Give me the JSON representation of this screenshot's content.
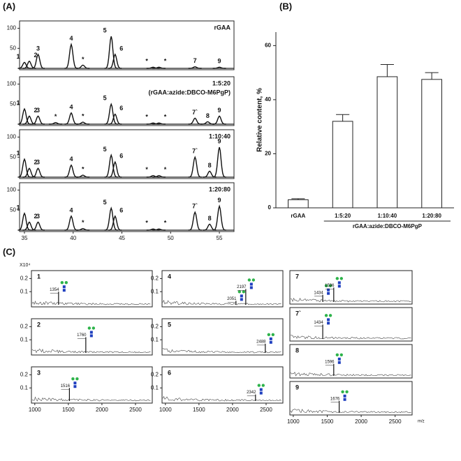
{
  "chart_data": [
    {
      "type": "chromatogram",
      "panel": "(A)",
      "xlim": [
        34.5,
        56.5
      ],
      "xticks": [
        35,
        40,
        45,
        50,
        55
      ],
      "ylim": [
        0,
        115
      ],
      "yticks": [
        50,
        100
      ],
      "traces": [
        {
          "labels": [
            "rGAA"
          ],
          "peaks": [
            {
              "x": 35,
              "height": 15,
              "label": "1"
            },
            {
              "x": 35.5,
              "height": 18,
              "label": "2"
            },
            {
              "x": 36.4,
              "height": 35,
              "label": "3"
            },
            {
              "x": 39.8,
              "height": 60,
              "label": "4"
            },
            {
              "x": 41,
              "height": 8,
              "label": "*"
            },
            {
              "x": 43.9,
              "height": 80,
              "label": "5"
            },
            {
              "x": 44.3,
              "height": 35,
              "label": "6"
            },
            {
              "x": 48.2,
              "height": 3,
              "label": "*"
            },
            {
              "x": 48.8,
              "height": 3,
              "label": "*"
            },
            {
              "x": 52.5,
              "height": 4,
              "label": "7"
            },
            {
              "x": 55,
              "height": 3,
              "label": "9"
            }
          ]
        },
        {
          "labels": [
            "1:5:20",
            "(rGAA:azide:DBCO-M6PgP)"
          ],
          "peaks": [
            {
              "x": 35,
              "height": 38,
              "label": "1"
            },
            {
              "x": 35.5,
              "height": 20,
              "label": "2"
            },
            {
              "x": 36.4,
              "height": 20,
              "label": "3"
            },
            {
              "x": 38.2,
              "height": 4,
              "label": "*"
            },
            {
              "x": 39.8,
              "height": 28,
              "label": "4"
            },
            {
              "x": 41,
              "height": 5,
              "label": "*"
            },
            {
              "x": 43.9,
              "height": 50,
              "label": "5"
            },
            {
              "x": 44.3,
              "height": 25,
              "label": "6"
            },
            {
              "x": 48.2,
              "height": 3,
              "label": "*"
            },
            {
              "x": 48.8,
              "height": 3,
              "label": "*"
            },
            {
              "x": 52.5,
              "height": 15,
              "label": "7`"
            },
            {
              "x": 53.8,
              "height": 6,
              "label": "8"
            },
            {
              "x": 55,
              "height": 20,
              "label": "9"
            }
          ]
        },
        {
          "labels": [
            "1:10:40"
          ],
          "peaks": [
            {
              "x": 35,
              "height": 45,
              "label": "1"
            },
            {
              "x": 35.5,
              "height": 22,
              "label": "2"
            },
            {
              "x": 36.4,
              "height": 22,
              "label": "3"
            },
            {
              "x": 39.8,
              "height": 30,
              "label": "4"
            },
            {
              "x": 41,
              "height": 5,
              "label": "*"
            },
            {
              "x": 43.9,
              "height": 55,
              "label": "5"
            },
            {
              "x": 44.3,
              "height": 38,
              "label": "6"
            },
            {
              "x": 48.2,
              "height": 4,
              "label": "*"
            },
            {
              "x": 48.8,
              "height": 4,
              "label": "*"
            },
            {
              "x": 52.5,
              "height": 50,
              "label": "7`"
            },
            {
              "x": 54,
              "height": 15,
              "label": "8"
            },
            {
              "x": 55,
              "height": 75,
              "label": "9"
            }
          ]
        },
        {
          "labels": [
            "1:20:80"
          ],
          "peaks": [
            {
              "x": 35,
              "height": 42,
              "label": "1"
            },
            {
              "x": 35.5,
              "height": 20,
              "label": "2"
            },
            {
              "x": 36.4,
              "height": 20,
              "label": "3"
            },
            {
              "x": 39.8,
              "height": 35,
              "label": "4"
            },
            {
              "x": 41,
              "height": 4,
              "label": "*"
            },
            {
              "x": 43.9,
              "height": 55,
              "label": "5"
            },
            {
              "x": 44.3,
              "height": 35,
              "label": "6"
            },
            {
              "x": 48.2,
              "height": 3,
              "label": "*"
            },
            {
              "x": 48.8,
              "height": 3,
              "label": "*"
            },
            {
              "x": 52.5,
              "height": 45,
              "label": "7`"
            },
            {
              "x": 54,
              "height": 15,
              "label": "8"
            },
            {
              "x": 55,
              "height": 60,
              "label": "9"
            }
          ]
        }
      ]
    },
    {
      "type": "bar",
      "panel": "(B)",
      "ylabel": "Relative content, %",
      "xlabel": "rGAA:azide:DBCO-M6PgP",
      "categories": [
        "rGAA",
        "1:5:20",
        "1:10:40",
        "1:20:80"
      ],
      "values": [
        3,
        32,
        48.5,
        47.5
      ],
      "errors": [
        0.4,
        2.5,
        4.5,
        2.5
      ],
      "color": "#ffffff",
      "ylim": [
        0,
        65
      ],
      "yticks": [
        0,
        20,
        40,
        60
      ]
    },
    {
      "type": "spectra",
      "panel": "(C)",
      "yunit": "X10⁴",
      "xlabel": "m/z",
      "xlim": [
        950,
        2750
      ],
      "xticks": [
        1000,
        1500,
        2000,
        2500
      ],
      "ylim": [
        0,
        0.25
      ],
      "yticks": [
        0.1,
        0.2
      ],
      "spectra": [
        {
          "label": "1",
          "peaks": [
            {
              "x": 1354,
              "height": 0.1
            }
          ]
        },
        {
          "label": "2",
          "peaks": [
            {
              "x": 1760,
              "height": 0.12
            }
          ]
        },
        {
          "label": "3",
          "peaks": [
            {
              "x": 1516,
              "height": 0.1
            }
          ]
        },
        {
          "label": "4",
          "peaks": [
            {
              "x": 2051,
              "height": 0.03
            },
            {
              "x": 2197,
              "height": 0.12
            }
          ]
        },
        {
          "label": "5",
          "peaks": [
            {
              "x": 2488,
              "height": 0.07
            }
          ]
        },
        {
          "label": "6",
          "peaks": [
            {
              "x": 2342,
              "height": 0.05
            }
          ]
        },
        {
          "label": "7",
          "peaks": [
            {
              "x": 1434,
              "height": 0.06
            },
            {
              "x": 1596,
              "height": 0.12
            }
          ]
        },
        {
          "label": "7`",
          "peaks": [
            {
              "x": 1434,
              "height": 0.12
            }
          ]
        },
        {
          "label": "8",
          "peaks": [
            {
              "x": 1596,
              "height": 0.1
            }
          ]
        },
        {
          "label": "9",
          "peaks": [
            {
              "x": 1676,
              "height": 0.1
            }
          ]
        }
      ]
    }
  ]
}
